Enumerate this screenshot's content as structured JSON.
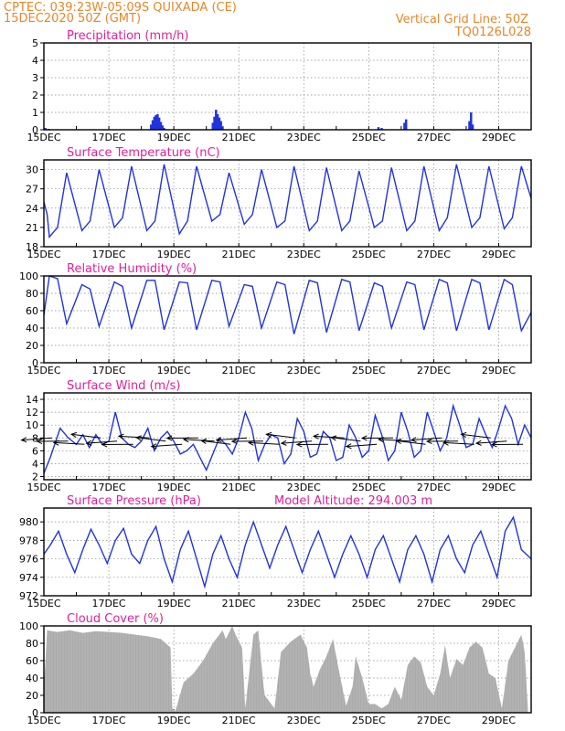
{
  "header": {
    "station": "CPTEC:   039:23W-05:09S   QUIXADA (CE)",
    "run": "15DEC2020  50Z  (GMT)",
    "grid_note": "Vertical Grid Line: 50Z",
    "model": "TQ0126L028"
  },
  "colors": {
    "header": "#e8862a",
    "title": "#e0209a",
    "series": "#2233dd",
    "cloud": "#aaaaaa",
    "wind": "#000000"
  },
  "chart_data": [
    {
      "id": "precip",
      "type": "bar",
      "title": "Precipitation  (mm/h)",
      "ylim": [
        0,
        5
      ],
      "yticks": [
        "0",
        "1",
        "2",
        "3",
        "4",
        "5"
      ],
      "xlim": [
        0,
        15
      ],
      "xticks": [
        "15DEC",
        "17DEC",
        "19DEC",
        "21DEC",
        "23DEC",
        "25DEC",
        "27DEC",
        "29DEC"
      ],
      "x": [
        0.05,
        0.15,
        3.3,
        3.35,
        3.4,
        3.45,
        3.5,
        3.55,
        3.6,
        3.65,
        3.7,
        5.2,
        5.25,
        5.3,
        5.35,
        5.4,
        5.45,
        5.5,
        10.3,
        10.4,
        11.1,
        11.15,
        13.1,
        13.15,
        13.2
      ],
      "values": [
        0.1,
        0.05,
        0.3,
        0.55,
        0.75,
        0.85,
        0.9,
        0.7,
        0.45,
        0.25,
        0.1,
        0.4,
        0.75,
        1.15,
        0.9,
        0.7,
        0.5,
        0.2,
        0.15,
        0.1,
        0.4,
        0.6,
        0.5,
        1.0,
        0.3
      ]
    },
    {
      "id": "temp",
      "type": "line",
      "title": "Surface Temperature  (nC)",
      "ylim": [
        18,
        31.5
      ],
      "yticks": [
        "18",
        "21",
        "24",
        "27",
        "30"
      ],
      "xlim": [
        0,
        15
      ],
      "xticks": [
        "15DEC",
        "17DEC",
        "19DEC",
        "21DEC",
        "23DEC",
        "25DEC",
        "27DEC",
        "29DEC"
      ],
      "x": [
        0,
        0.1,
        0.17,
        0.42,
        0.7,
        1.17,
        1.42,
        1.7,
        2.17,
        2.42,
        2.7,
        3.17,
        3.42,
        3.7,
        4.17,
        4.42,
        4.7,
        5.17,
        5.42,
        5.7,
        6.17,
        6.42,
        6.7,
        7.17,
        7.42,
        7.7,
        8.17,
        8.42,
        8.7,
        9.17,
        9.42,
        9.7,
        10.17,
        10.42,
        10.7,
        11.17,
        11.42,
        11.7,
        12.17,
        12.42,
        12.7,
        13.17,
        13.42,
        13.7,
        14.17,
        14.42,
        14.7,
        15
      ],
      "values": [
        25,
        23,
        19.5,
        21,
        29.5,
        20.5,
        22,
        30,
        21,
        22.5,
        30.5,
        20.5,
        22,
        30.8,
        20,
        22,
        30.5,
        22,
        23,
        29.5,
        21.5,
        23,
        30,
        21,
        22,
        30.5,
        20.5,
        22,
        30.3,
        20.5,
        22,
        29.8,
        21,
        22,
        30.3,
        20.5,
        22,
        30.5,
        20.5,
        22.5,
        30.8,
        21,
        22.5,
        30.5,
        20.8,
        22.5,
        30.5,
        25.5
      ]
    },
    {
      "id": "rh",
      "type": "line",
      "title": "Relative Humidity  (%)",
      "ylim": [
        0,
        100
      ],
      "yticks": [
        "0",
        "20",
        "40",
        "60",
        "80",
        "100"
      ],
      "xlim": [
        0,
        15
      ],
      "xticks": [
        "15DEC",
        "17DEC",
        "19DEC",
        "21DEC",
        "23DEC",
        "25DEC",
        "27DEC",
        "29DEC"
      ],
      "x": [
        0,
        0.17,
        0.42,
        0.7,
        1.17,
        1.42,
        1.7,
        2.17,
        2.42,
        2.7,
        3.17,
        3.42,
        3.7,
        4.17,
        4.42,
        4.7,
        5.17,
        5.42,
        5.7,
        6.17,
        6.42,
        6.7,
        7.17,
        7.42,
        7.7,
        8.17,
        8.42,
        8.7,
        9.17,
        9.42,
        9.7,
        10.17,
        10.42,
        10.7,
        11.17,
        11.42,
        11.7,
        12.17,
        12.42,
        12.7,
        13.17,
        13.42,
        13.7,
        14.17,
        14.42,
        14.7,
        15
      ],
      "values": [
        55,
        100,
        97,
        45,
        90,
        85,
        42,
        93,
        88,
        40,
        95,
        95,
        38,
        93,
        92,
        38,
        95,
        93,
        42,
        90,
        88,
        40,
        93,
        90,
        33,
        95,
        92,
        35,
        96,
        93,
        37,
        92,
        88,
        40,
        93,
        90,
        38,
        96,
        92,
        37,
        96,
        92,
        38,
        96,
        90,
        37,
        58
      ]
    },
    {
      "id": "wind",
      "type": "line",
      "title": "Surface  Wind  (m/s)",
      "ylim": [
        1.5,
        15
      ],
      "yticks": [
        "2",
        "4",
        "6",
        "8",
        "10",
        "12",
        "14"
      ],
      "xlim": [
        0,
        15
      ],
      "xticks": [
        "15DEC",
        "17DEC",
        "19DEC",
        "21DEC",
        "23DEC",
        "25DEC",
        "27DEC",
        "29DEC"
      ],
      "x": [
        0,
        0.2,
        0.5,
        0.75,
        1,
        1.2,
        1.4,
        1.6,
        1.8,
        2,
        2.2,
        2.4,
        2.6,
        2.8,
        3,
        3.2,
        3.4,
        3.6,
        3.8,
        4,
        4.2,
        4.4,
        4.6,
        4.8,
        5,
        5.2,
        5.4,
        5.6,
        5.8,
        6,
        6.2,
        6.4,
        6.6,
        6.8,
        7,
        7.2,
        7.4,
        7.6,
        7.8,
        8,
        8.2,
        8.4,
        8.6,
        8.8,
        9,
        9.2,
        9.4,
        9.6,
        9.8,
        10,
        10.2,
        10.4,
        10.6,
        10.8,
        11,
        11.2,
        11.4,
        11.6,
        11.8,
        12,
        12.2,
        12.4,
        12.6,
        12.8,
        13,
        13.2,
        13.4,
        13.6,
        13.8,
        14,
        14.2,
        14.4,
        14.6,
        14.8,
        15
      ],
      "values": [
        2.5,
        5,
        9.5,
        8,
        7,
        8.5,
        6.5,
        8.5,
        7,
        7.5,
        12,
        8,
        7,
        6.5,
        7.5,
        9.5,
        6,
        8,
        9,
        7.5,
        5.5,
        6,
        7,
        5,
        3,
        5.5,
        8,
        7,
        5.5,
        8,
        12,
        9.5,
        4.5,
        7,
        8.5,
        8,
        4,
        5.5,
        11,
        9,
        5,
        5.5,
        9,
        8,
        4.5,
        5,
        10,
        8,
        5,
        6,
        11.5,
        8.5,
        4.5,
        6,
        12,
        9,
        5,
        6,
        12,
        9,
        6,
        8,
        13,
        10,
        6.5,
        7,
        11,
        8.5,
        6.5,
        9.5,
        13,
        11,
        7,
        10,
        8
      ],
      "vectors_count": 30
    },
    {
      "id": "pressure",
      "type": "line",
      "title": "Surface  Pressure  (hPa)",
      "annotation": "Model Altitude: 294.003  m",
      "ylim": [
        972,
        981.5
      ],
      "yticks": [
        "972",
        "974",
        "976",
        "978",
        "980"
      ],
      "xlim": [
        0,
        15
      ],
      "xticks": [
        "15DEC",
        "17DEC",
        "19DEC",
        "21DEC",
        "23DEC",
        "25DEC",
        "27DEC",
        "29DEC"
      ],
      "x": [
        0,
        0.2,
        0.45,
        0.7,
        0.95,
        1.2,
        1.45,
        1.7,
        1.95,
        2.2,
        2.45,
        2.7,
        2.95,
        3.2,
        3.45,
        3.7,
        3.95,
        4.2,
        4.45,
        4.7,
        4.95,
        5.2,
        5.45,
        5.7,
        5.95,
        6.2,
        6.45,
        6.7,
        6.95,
        7.2,
        7.45,
        7.7,
        7.95,
        8.2,
        8.45,
        8.7,
        8.95,
        9.2,
        9.45,
        9.7,
        9.95,
        10.2,
        10.45,
        10.7,
        10.95,
        11.2,
        11.45,
        11.7,
        11.95,
        12.2,
        12.45,
        12.7,
        12.95,
        13.2,
        13.45,
        13.7,
        13.95,
        14.2,
        14.45,
        14.7,
        15
      ],
      "values": [
        976.5,
        977.5,
        979,
        976.5,
        974.5,
        977,
        979.2,
        977.5,
        975.5,
        978,
        979.3,
        976.5,
        975.5,
        978,
        979.5,
        976,
        973.5,
        977,
        979,
        976,
        973,
        976.5,
        978.5,
        976,
        974,
        977.5,
        980,
        977.5,
        975,
        977.5,
        979.5,
        977,
        974.5,
        977,
        979,
        976.5,
        974,
        976.5,
        978.5,
        976.5,
        974,
        977,
        978.5,
        976,
        973.5,
        977,
        978.5,
        976.5,
        973.5,
        977,
        978.5,
        976,
        974.5,
        977.5,
        979,
        976.5,
        974,
        979,
        980.5,
        977,
        976
      ]
    },
    {
      "id": "cloud",
      "type": "area",
      "title": "Cloud Cover  (%)",
      "ylim": [
        0,
        100
      ],
      "yticks": [
        "0",
        "20",
        "40",
        "60",
        "80",
        "100"
      ],
      "xlim": [
        0,
        15
      ],
      "xticks": [
        "15DEC",
        "17DEC",
        "19DEC",
        "21DEC",
        "23DEC",
        "25DEC",
        "27DEC",
        "29DEC"
      ],
      "x": [
        0,
        0.1,
        0.4,
        0.8,
        1.2,
        1.6,
        2,
        2.4,
        2.8,
        3.2,
        3.6,
        3.9,
        3.95,
        4.05,
        4.3,
        4.6,
        4.9,
        5.2,
        5.5,
        5.6,
        5.8,
        5.9,
        6.1,
        6.2,
        6.3,
        6.45,
        6.6,
        6.75,
        6.8,
        7.1,
        7.3,
        7.6,
        7.9,
        8.1,
        8.2,
        8.3,
        8.5,
        8.7,
        8.9,
        9.1,
        9.3,
        9.5,
        9.6,
        9.8,
        10,
        10.2,
        10.4,
        10.6,
        10.8,
        11,
        11.2,
        11.4,
        11.6,
        11.8,
        12,
        12.2,
        12.35,
        12.5,
        12.7,
        12.9,
        13.1,
        13.3,
        13.5,
        13.7,
        13.9,
        14.1,
        14.3,
        14.5,
        14.7,
        14.8,
        14.9
      ],
      "values": [
        30,
        95,
        93,
        95,
        92,
        94,
        93,
        92,
        90,
        88,
        85,
        75,
        5,
        2,
        35,
        45,
        60,
        80,
        95,
        85,
        100,
        90,
        75,
        5,
        40,
        90,
        95,
        35,
        20,
        5,
        70,
        82,
        90,
        75,
        45,
        30,
        50,
        65,
        85,
        45,
        8,
        30,
        65,
        40,
        10,
        10,
        5,
        10,
        30,
        15,
        55,
        65,
        58,
        30,
        20,
        45,
        78,
        40,
        62,
        55,
        75,
        82,
        75,
        45,
        40,
        5,
        60,
        75,
        90,
        70,
        5
      ]
    }
  ]
}
